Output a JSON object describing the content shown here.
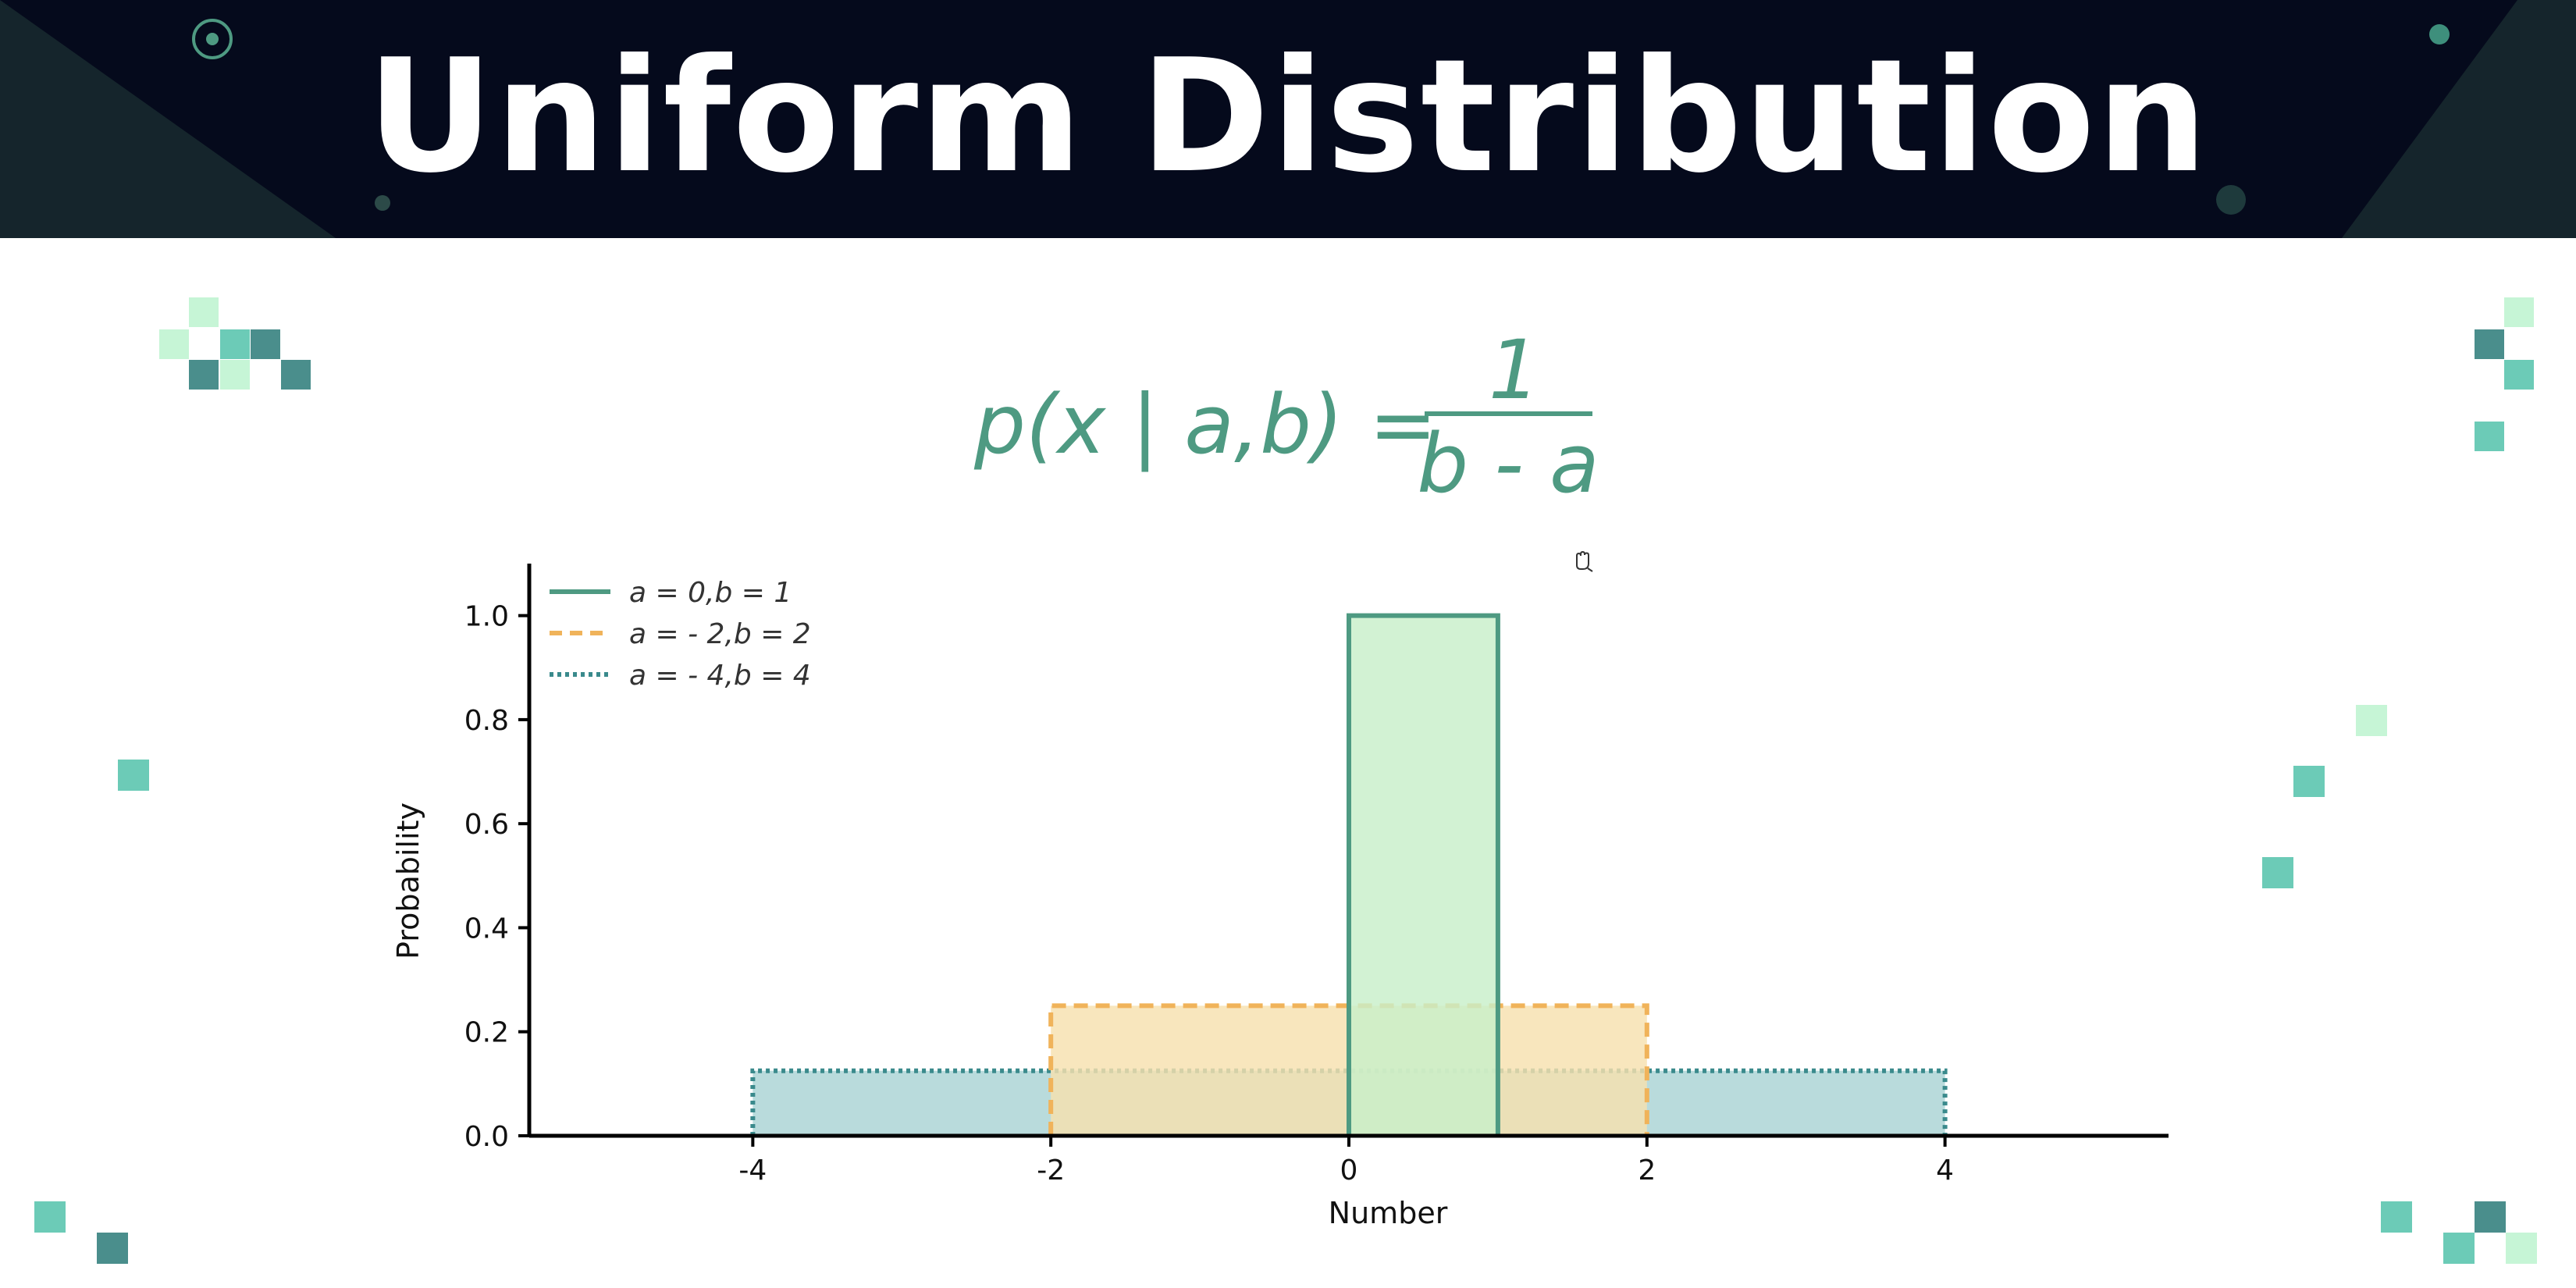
{
  "header": {
    "title": "Uniform Distribution"
  },
  "formula": {
    "lhs": "p(x | a,b) =",
    "numerator": "1",
    "denominator": "b - a"
  },
  "colors": {
    "header_bg": "#050a1c",
    "formula": "#4e9a82",
    "series_1": "#4e9a82",
    "series_2": "#f0b35a",
    "series_3": "#3a8a8c",
    "fill_1": "#c8efc9",
    "fill_2": "#f7e0ae",
    "fill_3": "#a9d3d4"
  },
  "chart_data": {
    "type": "area",
    "xlabel": "Number",
    "ylabel": "Probability",
    "xlim": [
      -5.5,
      5.5
    ],
    "ylim": [
      0,
      1.1
    ],
    "x_ticks": [
      -4,
      -2,
      0,
      2,
      4
    ],
    "y_ticks": [
      0.0,
      0.2,
      0.4,
      0.6,
      0.8,
      1.0
    ],
    "x_tick_labels": [
      "-4",
      "-2",
      "0",
      "2",
      "4"
    ],
    "y_tick_labels": [
      "0.0",
      "0.2",
      "0.4",
      "0.6",
      "0.8",
      "1.0"
    ],
    "grid": false,
    "legend_position": "top-left",
    "series": [
      {
        "name": "a = 0,b = 1",
        "a": 0,
        "b": 1,
        "density": 1.0,
        "line_style": "solid"
      },
      {
        "name": "a = - 2,b = 2",
        "a": -2,
        "b": 2,
        "density": 0.25,
        "line_style": "dashed"
      },
      {
        "name": "a = - 4,b = 4",
        "a": -4,
        "b": 4,
        "density": 0.125,
        "line_style": "dotted"
      }
    ]
  }
}
